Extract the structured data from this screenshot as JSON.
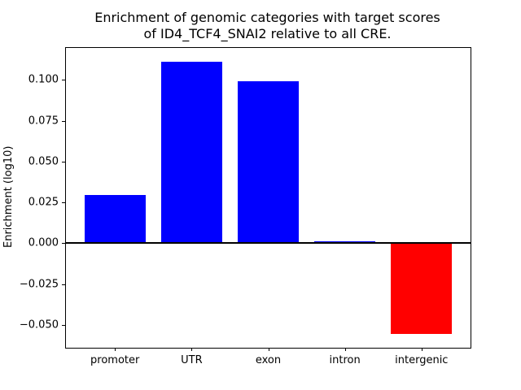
{
  "figure": {
    "title_line1": "Enrichment of genomic categories with target scores",
    "title_line2": "of ID4_TCF4_SNAI2 relative to all CRE.",
    "background": "#ffffff"
  },
  "chart_data": {
    "type": "bar",
    "title": "Enrichment of genomic categories with target scores\nof ID4_TCF4_SNAI2 relative to all CRE.",
    "xlabel": "",
    "ylabel": "Enrichment (log10)",
    "categories": [
      "promoter",
      "UTR",
      "exon",
      "intron",
      "intergenic"
    ],
    "values": [
      0.0295,
      0.111,
      0.099,
      0.001,
      -0.0555
    ],
    "bar_colors": [
      "#0000ff",
      "#0000ff",
      "#0000ff",
      "#0000ff",
      "#ff0000"
    ],
    "positive_color": "#0000ff",
    "negative_color": "#ff0000",
    "axis_color": "#000000",
    "yticks": [
      -0.05,
      -0.025,
      0.0,
      0.025,
      0.05,
      0.075,
      0.1
    ],
    "ytick_labels": [
      "−0.050",
      "−0.025",
      "0.000",
      "0.025",
      "0.050",
      "0.075",
      "0.100"
    ],
    "ylim": [
      -0.064,
      0.1195
    ],
    "bar_width_fraction": 0.8,
    "grid": false,
    "zero_line": true,
    "legend_position": "none"
  }
}
